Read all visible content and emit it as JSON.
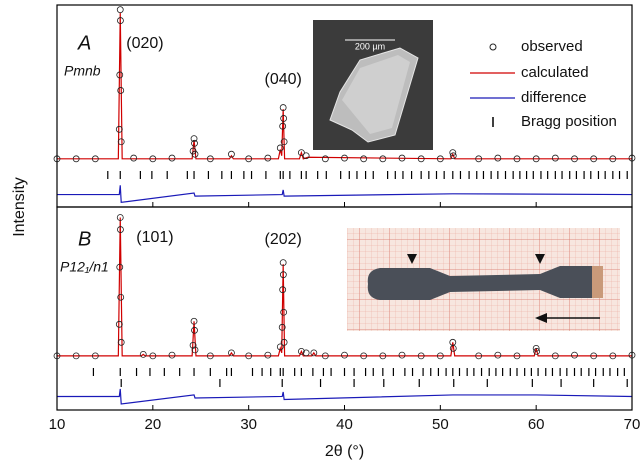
{
  "chart_data": {
    "type": "diffraction",
    "x_label": "2θ (°)",
    "y_label": "Intensity",
    "xlim": [
      10,
      70
    ],
    "xticks": [
      10,
      20,
      30,
      40,
      50,
      60,
      70
    ],
    "legend": "upper right",
    "series": [
      {
        "name": "observed",
        "color": "#222222"
      },
      {
        "name": "calculated",
        "color": "#d00000"
      },
      {
        "name": "difference",
        "color": "#1a1ab8"
      },
      {
        "name": "Bragg position",
        "color": "#000000"
      }
    ],
    "panels": [
      {
        "label": "A",
        "phase": "Pmnb",
        "ylim": [
          -30,
          100
        ],
        "peak_labels": [
          {
            "text": "(020)",
            "x": 16.6
          },
          {
            "text": "(040)",
            "x": 33.6
          }
        ],
        "inset_scale": "200 µm",
        "series": [
          {
            "x": [
              10,
              12,
              14,
              16.5,
              16.55,
              16.6,
              16.62,
              16.65,
              16.7,
              18,
              20,
              22,
              24.2,
              24.3,
              24.35,
              24.4,
              26,
              28.2,
              30,
              32,
              33.3,
              33.55,
              33.6,
              33.65,
              33.7,
              35.5,
              36,
              38,
              40,
              42,
              44,
              46,
              48,
              50,
              51.3,
              51.35,
              54,
              56,
              58,
              60,
              62,
              64,
              66,
              68,
              70
            ],
            "values": [
              1,
              1,
              1,
              20,
              55,
              97,
              90,
              45,
              12,
              1.5,
              1,
              1.5,
              6,
              14,
              11,
              4,
              1,
              4,
              1,
              1.5,
              8,
              22,
              34,
              27,
              12,
              5,
              3,
              1,
              1.5,
              1,
              1,
              1.5,
              1,
              1,
              5,
              3,
              1,
              1.5,
              1,
              1,
              1.5,
              1,
              1,
              1,
              1.5
            ]
          },
          {
            "x": [
              10,
              16.4,
              16.6,
              16.8,
              24.1,
              24.3,
              24.5,
              28.0,
              28.2,
              28.4,
              33.1,
              33.3,
              33.45,
              33.6,
              33.75,
              35.3,
              35.5,
              35.7,
              36.2,
              51.1,
              51.3,
              51.5,
              70
            ],
            "values": [
              1,
              1,
              95,
              1,
              1,
              13,
              1,
              1,
              3,
              1,
              1,
              7,
              3,
              33,
              1,
              1,
              5,
              1,
              2,
              1,
              4,
              1,
              1
            ]
          },
          {
            "x": [
              10,
              16.5,
              16.6,
              16.7,
              24.3,
              24.4,
              33.5,
              33.6,
              33.7,
              51.3,
              70
            ],
            "values": [
              -22,
              -22,
              -16,
              -27,
              -21,
              -23,
              -22,
              -19,
              -23,
              -21.5,
              -22
            ]
          }
        ],
        "bragg_positions": [
          [
            15.3,
            16.6,
            18.7,
            19.9,
            21.5,
            23.6,
            24.3,
            25.8,
            27.2,
            28.2,
            29.5,
            30.3,
            31.8,
            33.3,
            33.6,
            34.3,
            35.5,
            36.0,
            37.2,
            38.1,
            39.6,
            40.5,
            41.3,
            42.2,
            43.0,
            44.5,
            45.3,
            46.1,
            47.0,
            48.0,
            48.8,
            49.6,
            50.4,
            51.3,
            52.1,
            53.0,
            53.8,
            54.5,
            55.3,
            56.0,
            56.8,
            57.6,
            58.3,
            59.0,
            59.7,
            60.5,
            61.2,
            62.0,
            62.7,
            63.5,
            64.2,
            65.0,
            65.7,
            66.5,
            67.2,
            68.0,
            68.7,
            69.5
          ]
        ]
      },
      {
        "label": "B",
        "phase": "P12₁/n1",
        "ylim": [
          -35,
          100
        ],
        "peak_labels": [
          {
            "text": "(101)",
            "x": 16.6
          },
          {
            "text": "(202)",
            "x": 33.6
          }
        ],
        "series": [
          {
            "x": [
              10,
              12,
              14,
              16.5,
              16.55,
              16.6,
              16.62,
              16.65,
              16.7,
              19,
              20,
              22,
              24.2,
              24.3,
              24.35,
              24.4,
              26,
              28.2,
              30,
              32,
              33.3,
              33.5,
              33.55,
              33.6,
              33.62,
              33.65,
              33.7,
              35.5,
              36,
              36.8,
              38,
              40,
              42,
              44,
              46,
              48,
              50,
              51.3,
              51.35,
              54,
              56,
              58,
              60,
              60.05,
              62,
              64,
              66,
              68,
              70
            ],
            "values": [
              1,
              1,
              1,
              22,
              60,
              93,
              85,
              40,
              10,
              2,
              1,
              1.5,
              8,
              24,
              18,
              5,
              1,
              3,
              1,
              1.5,
              7,
              20,
              45,
              63,
              55,
              30,
              10,
              4,
              3,
              3,
              1,
              1.5,
              1,
              1,
              1.5,
              1,
              1,
              10,
              6,
              1,
              1.5,
              1,
              6,
              4,
              1,
              1.5,
              1,
              1,
              1.5
            ]
          },
          {
            "x": [
              10,
              16.4,
              16.6,
              16.8,
              18.8,
              19.0,
              19.2,
              24.1,
              24.3,
              24.5,
              28.0,
              28.2,
              28.4,
              33.1,
              33.3,
              33.45,
              33.6,
              33.75,
              35.3,
              35.5,
              35.7,
              36.6,
              36.8,
              37.0,
              51.1,
              51.3,
              51.5,
              59.8,
              60.0,
              60.2,
              70
            ],
            "values": [
              1,
              1,
              93,
              1,
              1,
              2,
              1,
              1,
              24,
              1,
              1,
              3,
              1,
              1,
              6,
              3,
              62,
              1,
              1,
              4,
              1,
              1,
              3,
              1,
              1,
              10,
              1,
              1,
              6,
              1,
              1
            ]
          },
          {
            "x": [
              10,
              16.5,
              16.6,
              16.7,
              24.3,
              24.4,
              33.5,
              33.6,
              33.7,
              51.3,
              60,
              70
            ],
            "values": [
              -26,
              -26,
              -21,
              -31,
              -25,
              -27,
              -26,
              -23,
              -28,
              -25,
              -25,
              -26
            ]
          }
        ],
        "bragg_positions": [
          [
            13.8,
            16.6,
            18.3,
            19.7,
            21.2,
            22.8,
            24.3,
            26.0,
            27.7,
            28.2,
            30.4,
            31.4,
            32.3,
            33.3,
            33.6,
            34.8,
            35.5,
            36.7,
            37.8,
            38.6,
            40.0,
            41.0,
            42.2,
            43.0,
            44.0,
            45.1,
            46.3,
            47.1,
            48.2,
            49.0,
            49.8,
            50.6,
            51.3,
            52.0,
            52.8,
            53.5,
            54.3,
            55.1,
            55.8,
            56.5,
            57.3,
            58.0,
            58.8,
            59.5,
            60.2,
            61.0,
            61.7,
            62.5,
            63.2,
            64.0,
            64.7,
            65.5,
            66.2,
            67.0,
            67.7,
            68.5,
            69.2
          ],
          [
            16.7,
            27.0,
            33.5,
            37.5,
            41.0,
            44.1,
            47.8,
            51.4,
            54.9,
            59.6,
            62.6,
            66.0,
            69.5
          ]
        ]
      }
    ]
  }
}
